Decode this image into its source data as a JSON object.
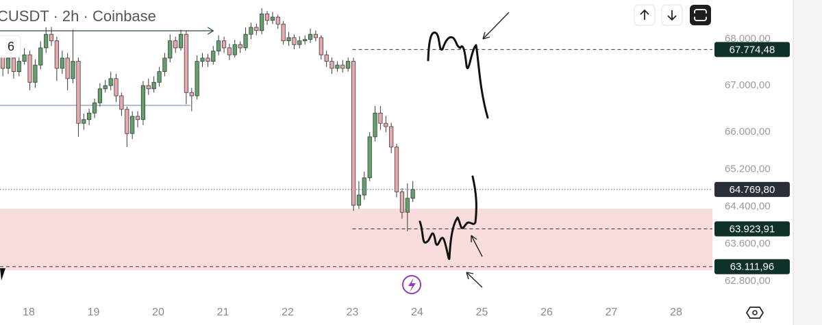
{
  "chart_data": {
    "type": "candlestick",
    "title": "CUSDT · 2h · Coinbase",
    "badge": "6",
    "x": [
      17.6,
      17.683,
      17.767,
      17.85,
      17.933,
      18.017,
      18.1,
      18.183,
      18.267,
      18.35,
      18.433,
      18.517,
      18.6,
      18.683,
      18.767,
      18.85,
      18.933,
      19.017,
      19.1,
      19.183,
      19.267,
      19.35,
      19.433,
      19.517,
      19.6,
      19.683,
      19.767,
      19.85,
      19.933,
      20.017,
      20.1,
      20.183,
      20.267,
      20.35,
      20.433,
      20.517,
      20.6,
      20.683,
      20.767,
      20.85,
      20.933,
      21.017,
      21.1,
      21.183,
      21.267,
      21.35,
      21.433,
      21.517,
      21.6,
      21.683,
      21.767,
      21.85,
      21.933,
      22.017,
      22.1,
      22.183,
      22.267,
      22.35,
      22.433,
      22.517,
      22.6,
      22.683,
      22.767,
      22.85,
      22.933,
      23.017,
      23.1,
      23.183,
      23.267,
      23.35,
      23.433,
      23.517,
      23.6,
      23.683,
      23.767,
      23.85,
      23.933
    ],
    "open": [
      67660,
      67370,
      67590,
      67300,
      67520,
      67660,
      67070,
      67440,
      67810,
      68100,
      67960,
      67370,
      67590,
      67150,
      67520,
      66190,
      66270,
      66410,
      66630,
      66930,
      67000,
      67150,
      66780,
      66490,
      65970,
      66340,
      66270,
      67000,
      66930,
      67070,
      67300,
      67590,
      67960,
      67810,
      68100,
      66850,
      66780,
      67520,
      67590,
      67520,
      67740,
      67960,
      67810,
      67660,
      67880,
      67810,
      68100,
      68250,
      68180,
      68540,
      68400,
      68470,
      68320,
      67960,
      68030,
      67880,
      67960,
      67990,
      68100,
      68030,
      67660,
      67520,
      67370,
      67440,
      67370,
      67520,
      64430,
      64650,
      65020,
      65900,
      66410,
      66190,
      66120,
      65680,
      64720,
      64280,
      64580
    ],
    "high": [
      67800,
      67700,
      67680,
      67650,
      67800,
      67750,
      67560,
      67950,
      68250,
      68260,
      68050,
      67750,
      67700,
      68200,
      67600,
      66400,
      66500,
      66720,
      67050,
      67120,
      67300,
      67250,
      66850,
      66550,
      66450,
      66450,
      67100,
      67150,
      67200,
      67400,
      67700,
      68100,
      68050,
      68200,
      68180,
      66950,
      67650,
      67700,
      67680,
      67850,
      68080,
      68050,
      67900,
      67980,
      67950,
      68250,
      68350,
      68330,
      68660,
      68600,
      68580,
      68520,
      68380,
      68150,
      68100,
      68060,
      68080,
      68220,
      68180,
      68080,
      67750,
      67600,
      67520,
      67550,
      67600,
      67600,
      64950,
      65150,
      66000,
      66560,
      66560,
      66350,
      66200,
      65750,
      64800,
      64900,
      64950
    ],
    "low": [
      67200,
      67250,
      67150,
      67200,
      67450,
      66900,
      66950,
      67350,
      67700,
      67850,
      67100,
      67250,
      66900,
      67050,
      65900,
      66050,
      66150,
      66300,
      66550,
      66850,
      66900,
      66650,
      66350,
      65680,
      65850,
      66100,
      66150,
      66800,
      66850,
      66980,
      67200,
      67500,
      67700,
      67750,
      66600,
      66450,
      66700,
      67400,
      67400,
      67450,
      67650,
      67700,
      67550,
      67600,
      67700,
      67750,
      68000,
      68080,
      68100,
      68300,
      68320,
      68220,
      67880,
      67850,
      67780,
      67800,
      67880,
      67920,
      67950,
      67560,
      67400,
      67250,
      67300,
      67280,
      67300,
      64310,
      64350,
      64550,
      64950,
      65800,
      66050,
      66000,
      65550,
      64600,
      64140,
      63870,
      64500
    ],
    "close": [
      67370,
      67590,
      67300,
      67520,
      67660,
      67070,
      67440,
      67810,
      68100,
      67960,
      67370,
      67590,
      67150,
      67520,
      66190,
      66270,
      66410,
      66630,
      66930,
      67000,
      67150,
      66780,
      66490,
      65970,
      66340,
      66270,
      67000,
      66930,
      67070,
      67300,
      67590,
      67960,
      67810,
      68100,
      66850,
      66780,
      67520,
      67590,
      67520,
      67740,
      67960,
      67810,
      67660,
      67880,
      67810,
      68100,
      68250,
      68180,
      68540,
      68400,
      68470,
      68320,
      67960,
      68030,
      67880,
      67960,
      67990,
      68100,
      68030,
      67660,
      67520,
      67370,
      67440,
      67370,
      67520,
      64430,
      64650,
      65020,
      65900,
      66410,
      66190,
      66120,
      65680,
      64720,
      64280,
      64580,
      64770
    ],
    "up_color": "#62a06c",
    "down_color": "#e8a9ae",
    "xlim": [
      17.556,
      28.561
    ],
    "xticks": [
      18,
      19,
      20,
      21,
      22,
      23,
      24,
      25,
      26,
      27,
      28
    ],
    "ylim": [
      62374,
      68837
    ],
    "yticks": [
      {
        "value": 68000,
        "label": "68.000,00"
      },
      {
        "value": 67000,
        "label": "67.000,00"
      },
      {
        "value": 66000,
        "label": "66.000,00"
      },
      {
        "value": 65200,
        "label": "65.200,00"
      },
      {
        "value": 64400,
        "label": "64.400,00"
      },
      {
        "value": 63600,
        "label": "63.600,00"
      },
      {
        "value": 62800,
        "label": "62.800,00"
      }
    ],
    "zone": {
      "from": 63034,
      "to": 64357,
      "color": "#f9dcdc"
    },
    "price_lines": [
      {
        "value": 67774.48,
        "label": "67.774,48",
        "x0": 23.0
      },
      {
        "value": 63923.91,
        "label": "63.923,91",
        "x0": 23.0
      },
      {
        "value": 63111.96,
        "label": "63.111,96",
        "x0": 17.556
      }
    ],
    "last_price": {
      "value": 64769.8,
      "label": "64.769,80"
    },
    "trend_lines": [
      {
        "value": 66575,
        "x0": 17.556,
        "x1": 20.5,
        "color": "#7b9cc9"
      },
      {
        "value": 68176,
        "x0": 17.556,
        "x1": 20.85,
        "color": "#2f4a3c"
      }
    ]
  }
}
